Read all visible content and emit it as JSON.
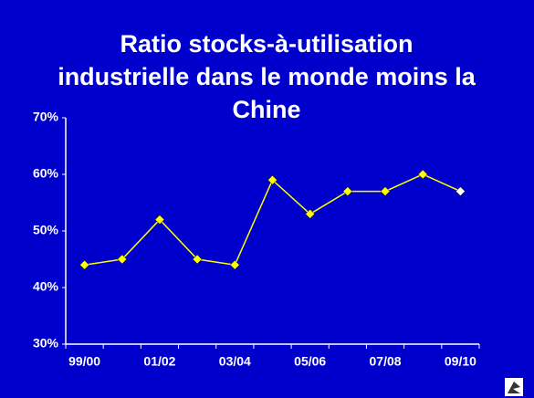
{
  "chart_data": {
    "type": "line",
    "title": "Ratio stocks-à-utilisation industrielle dans le monde moins la Chine",
    "categories": [
      "99/00",
      null,
      "01/02",
      null,
      "03/04",
      null,
      "05/06",
      null,
      "07/08",
      null,
      "09/10"
    ],
    "series": [
      {
        "color": "#ffff00",
        "values": [
          44,
          45,
          52,
          45,
          44,
          59,
          53,
          57,
          57,
          60,
          57
        ],
        "marker_colors": [
          "#ffff00",
          "#ffff00",
          "#ffff00",
          "#ffff00",
          "#ffff00",
          "#ffff00",
          "#ffff00",
          "#ffff00",
          "#ffff00",
          "#ffff00",
          "#ffffff"
        ]
      }
    ],
    "ylim": [
      30,
      70
    ],
    "yticks": [
      {
        "value": 30,
        "label": "30%"
      },
      {
        "value": 40,
        "label": "40%"
      },
      {
        "value": 50,
        "label": "50%"
      },
      {
        "value": 60,
        "label": "60%"
      },
      {
        "value": 70,
        "label": "70%"
      }
    ],
    "grid": false
  }
}
